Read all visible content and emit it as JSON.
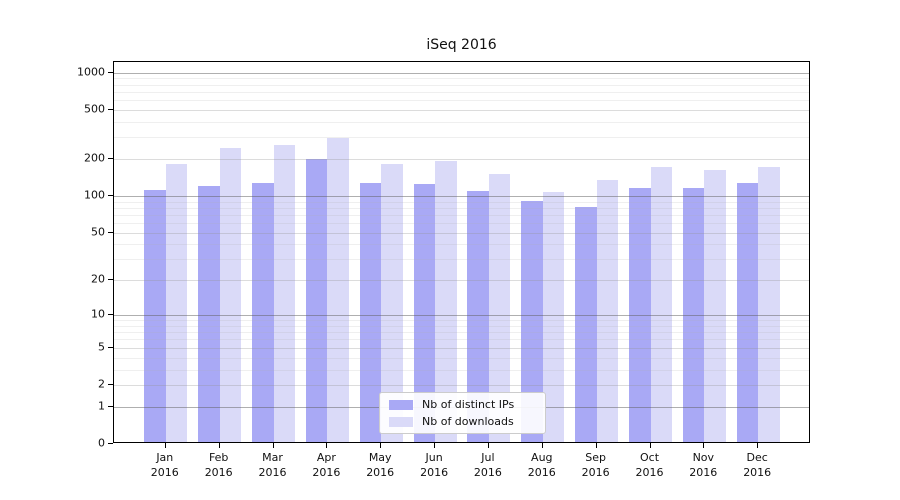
{
  "title": "iSeq 2016",
  "chart_data": {
    "type": "bar",
    "title": "iSeq 2016",
    "categories": [
      "Jan 2016",
      "Feb 2016",
      "Mar 2016",
      "Apr 2016",
      "May 2016",
      "Jun 2016",
      "Jul 2016",
      "Aug 2016",
      "Sep 2016",
      "Oct 2016",
      "Nov 2016",
      "Dec 2016"
    ],
    "series": [
      {
        "name": "Nb of distinct IPs",
        "color": "#a9a9f5",
        "values": [
          108,
          117,
          124,
          192,
          122,
          121,
          105,
          87,
          78,
          113,
          112,
          123
        ]
      },
      {
        "name": "Nb of downloads",
        "color": "#dadaf8",
        "values": [
          176,
          235,
          252,
          287,
          177,
          185,
          145,
          103,
          131,
          165,
          158,
          166
        ]
      }
    ],
    "yscale": "log1p",
    "ylim": [
      0,
      1000
    ],
    "yticks": [
      0,
      1,
      2,
      5,
      10,
      20,
      50,
      100,
      200,
      500,
      1000
    ],
    "emphasized_gridlines": [
      1,
      10,
      100,
      1000
    ],
    "minor_gridlines": [
      3,
      4,
      6,
      7,
      8,
      9,
      30,
      40,
      60,
      70,
      80,
      90,
      300,
      400,
      600,
      700,
      800,
      900
    ],
    "grid": true,
    "legend_position": "lower center",
    "xlabel": "",
    "ylabel": ""
  },
  "legend": {
    "items": [
      {
        "label": "Nb of distinct IPs",
        "color": "#a9a9f5"
      },
      {
        "label": "Nb of downloads",
        "color": "#dadaf8"
      }
    ]
  },
  "colors": {
    "bar_ips": "#a9a9f5",
    "bar_downloads": "#dadaf8",
    "axis": "#000000",
    "legend_border": "#cccccc",
    "background": "#ffffff"
  }
}
